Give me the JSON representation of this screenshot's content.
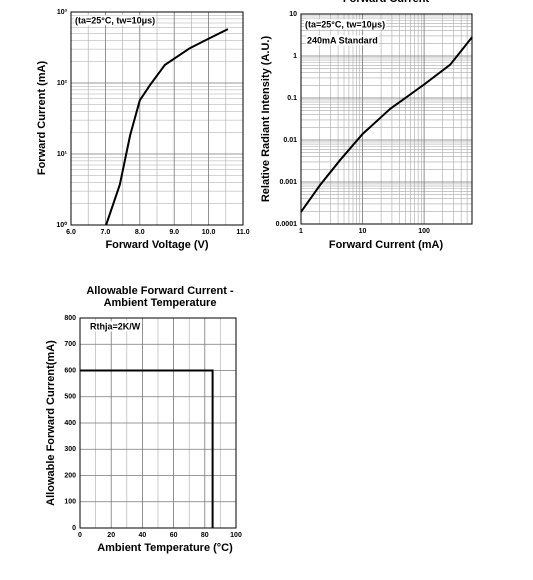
{
  "chart_data": [
    {
      "type": "line",
      "annotations": [
        "(ta=25°C, tw=10μs)"
      ],
      "xlabel": "Forward Voltage (V)",
      "ylabel": "Forward Current (mA)",
      "xlim": [
        6,
        11
      ],
      "xticks": [
        {
          "value": 6,
          "label": "6.0"
        },
        {
          "value": 7,
          "label": "7.0"
        },
        {
          "value": 8,
          "label": "8.0"
        },
        {
          "value": 9,
          "label": "9.0"
        },
        {
          "value": 10,
          "label": "10.0"
        },
        {
          "value": 11,
          "label": "11.0"
        }
      ],
      "ylim": [
        1,
        1000
      ],
      "yscale": "log",
      "yticks": [
        {
          "value": 1,
          "label": "10⁰"
        },
        {
          "value": 10,
          "label": "10¹"
        },
        {
          "value": 100,
          "label": "10²"
        },
        {
          "value": 1000,
          "label": "10³"
        }
      ],
      "grid": true,
      "series": [
        {
          "color": "#000000",
          "x": [
            7.02,
            7.42,
            7.72,
            8.0,
            8.3,
            8.73,
            9.46,
            10.04,
            10.56
          ],
          "values": [
            1,
            3.7,
            18.5,
            57,
            94,
            180,
            310,
            430,
            575
          ]
        }
      ]
    },
    {
      "type": "line",
      "title": "Forward Current",
      "annotations": [
        "(ta=25°C, tw=10μs)",
        "240mA Standard"
      ],
      "xlabel": "Forward Current (mA)",
      "ylabel": "Relative Radiant Intensity (A.U.)",
      "xlim": [
        1,
        600
      ],
      "xscale": "log",
      "xticks": [
        1,
        10,
        100
      ],
      "ylim": [
        0.0001,
        10
      ],
      "yscale": "log",
      "yticks": [
        0.0001,
        0.001,
        0.01,
        0.1,
        1,
        10
      ],
      "grid": true,
      "series": [
        {
          "color": "#000000",
          "x": [
            1,
            2.04,
            4.3,
            10,
            28,
            100,
            265,
            600
          ],
          "values": [
            0.000194,
            0.00085,
            0.0033,
            0.0139,
            0.055,
            0.21,
            0.62,
            2.8
          ]
        }
      ]
    },
    {
      "type": "line",
      "title": [
        "Allowable Forward Current -",
        "Ambient Temperature"
      ],
      "annotations": [
        "Rthja=2K/W"
      ],
      "xlabel": "Ambient Temperature (°C)",
      "ylabel": "Allowable Forward Current(mA)",
      "xlim": [
        0,
        100
      ],
      "xticks": [
        0,
        20,
        40,
        60,
        80,
        100
      ],
      "ylim": [
        0,
        800
      ],
      "yticks": [
        0,
        100,
        200,
        300,
        400,
        500,
        600,
        700,
        800
      ],
      "grid": true,
      "series": [
        {
          "color": "#000000",
          "x": [
            0,
            85,
            85
          ],
          "values": [
            600,
            600,
            0
          ]
        }
      ]
    }
  ]
}
